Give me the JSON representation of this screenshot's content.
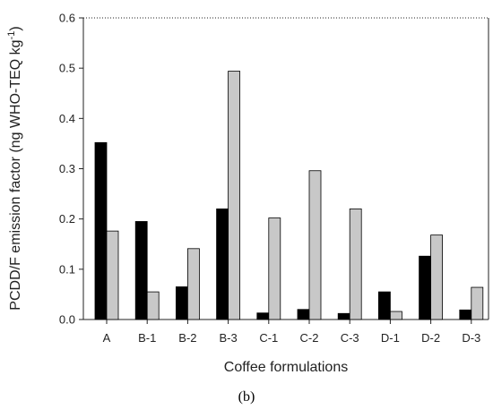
{
  "chart_data": {
    "type": "bar",
    "xlabel": "Coffee formulations",
    "ylabel_main": "PCDD/F emission factor (ng WHO-TEQ kg",
    "ylabel_sup": "-1",
    "ylabel_close": ")",
    "panel_label": "(b)",
    "ylim": [
      0,
      0.6
    ],
    "yticks": [
      "0.0",
      "0.1",
      "0.2",
      "0.3",
      "0.4",
      "0.5",
      "0.6"
    ],
    "categories": [
      "A",
      "B-1",
      "B-2",
      "B-3",
      "C-1",
      "C-2",
      "C-3",
      "D-1",
      "D-2",
      "D-3"
    ],
    "series": [
      {
        "values": [
          0.352,
          0.195,
          0.065,
          0.22,
          0.013,
          0.02,
          0.012,
          0.055,
          0.126,
          0.019
        ],
        "color": "#000000"
      },
      {
        "values": [
          0.176,
          0.055,
          0.141,
          0.494,
          0.202,
          0.296,
          0.22,
          0.016,
          0.168,
          0.064
        ],
        "color": "#c8c8c8"
      }
    ],
    "grid": false,
    "reference_line_at": 0.6
  }
}
